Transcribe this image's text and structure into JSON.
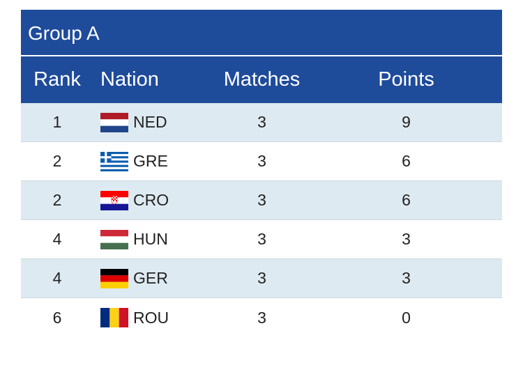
{
  "group": {
    "title": "Group A"
  },
  "columns": {
    "rank": "Rank",
    "nation": "Nation",
    "matches": "Matches",
    "points": "Points"
  },
  "colors": {
    "header_bg": "#1f4b9b",
    "row_shaded": "#deeaf1"
  },
  "rows": [
    {
      "rank": "1",
      "nation": "NED",
      "flag_icon": "netherlands-flag-icon",
      "matches": "3",
      "points": "9"
    },
    {
      "rank": "2",
      "nation": "GRE",
      "flag_icon": "greece-flag-icon",
      "matches": "3",
      "points": "6"
    },
    {
      "rank": "2",
      "nation": "CRO",
      "flag_icon": "croatia-flag-icon",
      "matches": "3",
      "points": "6"
    },
    {
      "rank": "4",
      "nation": "HUN",
      "flag_icon": "hungary-flag-icon",
      "matches": "3",
      "points": "3"
    },
    {
      "rank": "4",
      "nation": "GER",
      "flag_icon": "germany-flag-icon",
      "matches": "3",
      "points": "3"
    },
    {
      "rank": "6",
      "nation": "ROU",
      "flag_icon": "romania-flag-icon",
      "matches": "3",
      "points": "0"
    }
  ]
}
